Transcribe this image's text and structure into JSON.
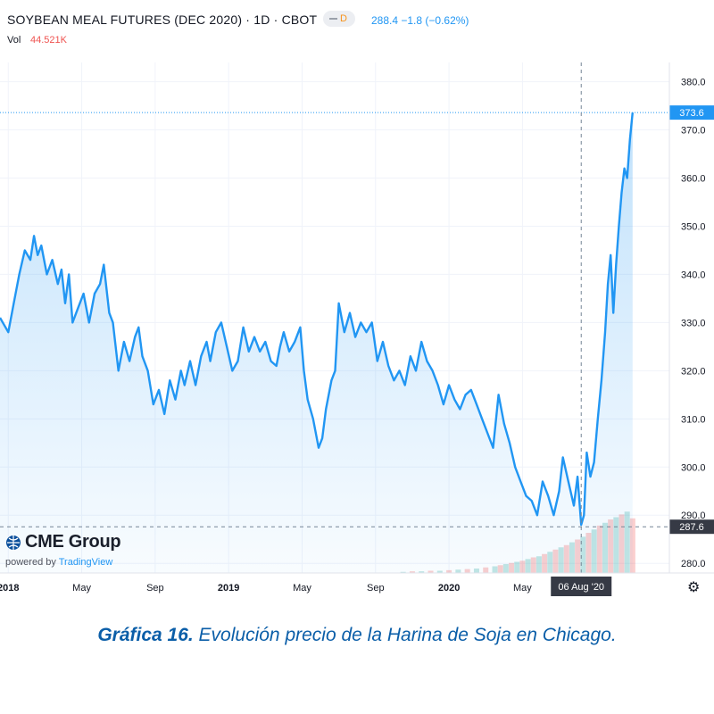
{
  "header": {
    "title": "SOYBEAN MEAL FUTURES (DEC 2020) · 1D · CBOT",
    "badge": "D",
    "quote": "288.4 −1.8 (−0.62%)",
    "vol_label": "Vol",
    "vol_value": "44.521K"
  },
  "logo": {
    "name": "CME Group",
    "powered_by": "powered by",
    "powered_brand": "TradingView"
  },
  "caption": {
    "bold": "Gráfica 16.",
    "text": " Evolución precio de la Harina de Soja en Chicago."
  },
  "colors": {
    "line": "#2196f3",
    "area": "#2196f3",
    "vol_up": "#26a69a",
    "vol_down": "#ef5350",
    "axis_label_bg": "#2196f3",
    "crosshair_label_bg": "#363a45"
  },
  "chart_data": {
    "type": "line",
    "title": "SOYBEAN MEAL FUTURES (DEC 2020)",
    "xlabel": "",
    "ylabel": "",
    "ylim": [
      278,
      384
    ],
    "y_ticks": [
      "280.0",
      "290.0",
      "300.0",
      "310.0",
      "320.0",
      "330.0",
      "340.0",
      "350.0",
      "360.0",
      "370.0",
      "380.0"
    ],
    "x_ticks": [
      {
        "label": "2018",
        "x": 0.0
      },
      {
        "label": "May",
        "x": 4.0
      },
      {
        "label": "Sep",
        "x": 8.0
      },
      {
        "label": "2019",
        "x": 12.0
      },
      {
        "label": "May",
        "x": 16.0
      },
      {
        "label": "Sep",
        "x": 20.0
      },
      {
        "label": "2020",
        "x": 24.0
      },
      {
        "label": "May",
        "x": 28.0
      }
    ],
    "x_unit": "months since Jan 2018",
    "last_price": "373.6",
    "crosshair_price": "287.6",
    "crosshair_date": "06 Aug '20",
    "crosshair": {
      "x": 31.2,
      "y": 287.6
    },
    "series": [
      {
        "name": "Soybean Meal Futures (Dec 2020)",
        "points": [
          [
            -0.45,
            331
          ],
          [
            0.0,
            328
          ],
          [
            0.3,
            334
          ],
          [
            0.6,
            340
          ],
          [
            0.9,
            345
          ],
          [
            1.2,
            343
          ],
          [
            1.4,
            348
          ],
          [
            1.6,
            344
          ],
          [
            1.8,
            346
          ],
          [
            2.1,
            340
          ],
          [
            2.4,
            343
          ],
          [
            2.7,
            338
          ],
          [
            2.9,
            341
          ],
          [
            3.1,
            334
          ],
          [
            3.3,
            340
          ],
          [
            3.5,
            330
          ],
          [
            3.8,
            333
          ],
          [
            4.1,
            336
          ],
          [
            4.4,
            330
          ],
          [
            4.7,
            336
          ],
          [
            5.0,
            338
          ],
          [
            5.2,
            342
          ],
          [
            5.5,
            332
          ],
          [
            5.7,
            330
          ],
          [
            6.0,
            320
          ],
          [
            6.3,
            326
          ],
          [
            6.6,
            322
          ],
          [
            6.9,
            327
          ],
          [
            7.1,
            329
          ],
          [
            7.3,
            323
          ],
          [
            7.6,
            320
          ],
          [
            7.9,
            313
          ],
          [
            8.2,
            316
          ],
          [
            8.5,
            311
          ],
          [
            8.8,
            318
          ],
          [
            9.1,
            314
          ],
          [
            9.4,
            320
          ],
          [
            9.6,
            317
          ],
          [
            9.9,
            322
          ],
          [
            10.2,
            317
          ],
          [
            10.5,
            323
          ],
          [
            10.8,
            326
          ],
          [
            11.0,
            322
          ],
          [
            11.3,
            328
          ],
          [
            11.6,
            330
          ],
          [
            11.9,
            325
          ],
          [
            12.2,
            320
          ],
          [
            12.5,
            322
          ],
          [
            12.8,
            329
          ],
          [
            13.1,
            324
          ],
          [
            13.4,
            327
          ],
          [
            13.7,
            324
          ],
          [
            14.0,
            326
          ],
          [
            14.3,
            322
          ],
          [
            14.6,
            321
          ],
          [
            14.8,
            325
          ],
          [
            15.0,
            328
          ],
          [
            15.3,
            324
          ],
          [
            15.6,
            326
          ],
          [
            15.9,
            329
          ],
          [
            16.1,
            320
          ],
          [
            16.3,
            314
          ],
          [
            16.6,
            310
          ],
          [
            16.9,
            304
          ],
          [
            17.1,
            306
          ],
          [
            17.3,
            312
          ],
          [
            17.6,
            318
          ],
          [
            17.8,
            320
          ],
          [
            18.0,
            334
          ],
          [
            18.3,
            328
          ],
          [
            18.6,
            332
          ],
          [
            18.9,
            327
          ],
          [
            19.2,
            330
          ],
          [
            19.5,
            328
          ],
          [
            19.8,
            330
          ],
          [
            20.1,
            322
          ],
          [
            20.4,
            326
          ],
          [
            20.7,
            321
          ],
          [
            21.0,
            318
          ],
          [
            21.3,
            320
          ],
          [
            21.6,
            317
          ],
          [
            21.9,
            323
          ],
          [
            22.2,
            320
          ],
          [
            22.5,
            326
          ],
          [
            22.8,
            322
          ],
          [
            23.1,
            320
          ],
          [
            23.4,
            317
          ],
          [
            23.7,
            313
          ],
          [
            24.0,
            317
          ],
          [
            24.3,
            314
          ],
          [
            24.6,
            312
          ],
          [
            24.9,
            315
          ],
          [
            25.2,
            316
          ],
          [
            25.5,
            313
          ],
          [
            25.8,
            310
          ],
          [
            26.1,
            307
          ],
          [
            26.4,
            304
          ],
          [
            26.7,
            315
          ],
          [
            27.0,
            309
          ],
          [
            27.3,
            305
          ],
          [
            27.6,
            300
          ],
          [
            27.9,
            297
          ],
          [
            28.2,
            294
          ],
          [
            28.5,
            293
          ],
          [
            28.8,
            290
          ],
          [
            29.1,
            297
          ],
          [
            29.4,
            294
          ],
          [
            29.7,
            290
          ],
          [
            30.0,
            295
          ],
          [
            30.2,
            302
          ],
          [
            30.5,
            297
          ],
          [
            30.8,
            292
          ],
          [
            31.0,
            298
          ],
          [
            31.2,
            288
          ],
          [
            31.35,
            290
          ],
          [
            31.5,
            303
          ],
          [
            31.7,
            298
          ],
          [
            31.9,
            301
          ],
          [
            32.1,
            310
          ],
          [
            32.3,
            318
          ],
          [
            32.5,
            328
          ],
          [
            32.65,
            338
          ],
          [
            32.8,
            344
          ],
          [
            32.95,
            332
          ],
          [
            33.1,
            342
          ],
          [
            33.25,
            350
          ],
          [
            33.4,
            357
          ],
          [
            33.55,
            362
          ],
          [
            33.7,
            360
          ],
          [
            33.85,
            368
          ],
          [
            34.0,
            373.6
          ]
        ]
      }
    ],
    "volume": {
      "ylim": [
        0,
        120
      ],
      "points": [
        [
          21.5,
          2
        ],
        [
          22.0,
          3
        ],
        [
          22.5,
          3
        ],
        [
          23.0,
          4
        ],
        [
          23.5,
          4
        ],
        [
          24.0,
          5
        ],
        [
          24.5,
          6
        ],
        [
          25.0,
          7
        ],
        [
          25.5,
          8
        ],
        [
          26.0,
          10
        ],
        [
          26.5,
          12
        ],
        [
          26.8,
          14
        ],
        [
          27.1,
          16
        ],
        [
          27.4,
          18
        ],
        [
          27.7,
          20
        ],
        [
          28.0,
          22
        ],
        [
          28.3,
          25
        ],
        [
          28.6,
          28
        ],
        [
          28.9,
          30
        ],
        [
          29.2,
          34
        ],
        [
          29.5,
          38
        ],
        [
          29.8,
          42
        ],
        [
          30.1,
          46
        ],
        [
          30.4,
          50
        ],
        [
          30.7,
          55
        ],
        [
          31.0,
          60
        ],
        [
          31.3,
          65
        ],
        [
          31.6,
          72
        ],
        [
          31.9,
          78
        ],
        [
          32.2,
          85
        ],
        [
          32.5,
          90
        ],
        [
          32.8,
          96
        ],
        [
          33.1,
          100
        ],
        [
          33.4,
          105
        ],
        [
          33.7,
          110
        ],
        [
          34.0,
          98
        ]
      ]
    },
    "grid": true,
    "legend": "none"
  }
}
